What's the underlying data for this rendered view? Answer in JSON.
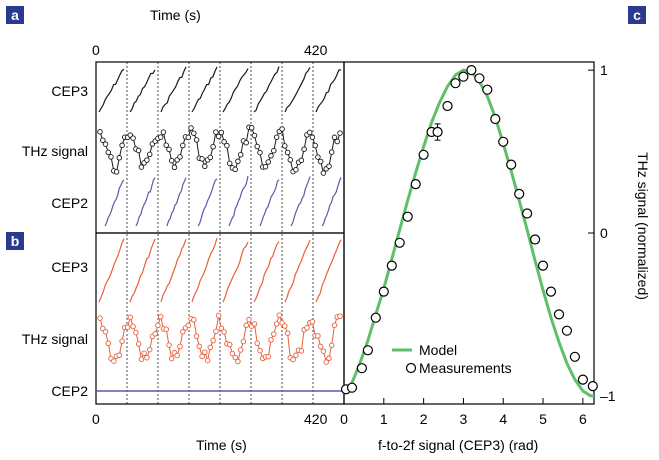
{
  "panels": {
    "a": "a",
    "b": "b",
    "c": "c"
  },
  "left": {
    "time_label_top": "Time (s)",
    "time_label_bottom": "Time (s)",
    "tick_start_top": "0",
    "tick_end_top": "420",
    "tick_start_bottom": "0",
    "tick_end_bottom": "420",
    "panel_a_labels": [
      "CEP3",
      "THz signal",
      "CEP2"
    ],
    "panel_b_labels": [
      "CEP3",
      "THz signal",
      "CEP2"
    ],
    "time_range": [
      0,
      420
    ],
    "colors": {
      "panel_a_cep3": "#1a1a1a",
      "panel_a_thz": "#1a1a1a",
      "panel_a_cep2": "#5a5aa8",
      "panel_b_cep3": "#e8603c",
      "panel_b_thz": "#e8603c",
      "panel_b_cep2": "#5a5aa8"
    }
  },
  "chart_data": {
    "type": "scatter",
    "xlabel": "f-to-2f signal (CEP3) (rad)",
    "ylabel": "THz signal (normalized)",
    "xlim": [
      0,
      6.28
    ],
    "ylim": [
      -1.05,
      1.05
    ],
    "x_ticks": [
      "0",
      "1",
      "2",
      "3",
      "4",
      "5",
      "6"
    ],
    "y_ticks": [
      "–1",
      "0",
      "1"
    ],
    "series": [
      {
        "name": "Model",
        "kind": "line",
        "color": "#5fbf6a",
        "x": [
          0.0,
          0.2,
          0.4,
          0.6,
          0.8,
          1.0,
          1.2,
          1.4,
          1.6,
          1.8,
          2.0,
          2.2,
          2.4,
          2.6,
          2.8,
          3.0,
          3.2,
          3.4,
          3.6,
          3.8,
          4.0,
          4.2,
          4.4,
          4.6,
          4.8,
          5.0,
          5.2,
          5.4,
          5.6,
          5.8,
          6.0,
          6.2,
          6.28
        ],
        "y": [
          -0.99,
          -0.92,
          -0.8,
          -0.66,
          -0.5,
          -0.34,
          -0.16,
          0.02,
          0.2,
          0.37,
          0.53,
          0.68,
          0.8,
          0.9,
          0.97,
          1.0,
          0.99,
          0.93,
          0.84,
          0.71,
          0.55,
          0.38,
          0.2,
          0.02,
          -0.17,
          -0.35,
          -0.52,
          -0.67,
          -0.8,
          -0.9,
          -0.97,
          -1.0,
          -1.0
        ]
      },
      {
        "name": "Measurements",
        "kind": "points",
        "color": "#000000",
        "x": [
          0.05,
          0.2,
          0.45,
          0.6,
          0.8,
          1.0,
          1.2,
          1.4,
          1.6,
          1.8,
          2.0,
          2.2,
          2.35,
          2.6,
          2.8,
          3.0,
          3.2,
          3.4,
          3.6,
          3.8,
          4.0,
          4.2,
          4.4,
          4.6,
          4.8,
          5.0,
          5.2,
          5.4,
          5.6,
          5.8,
          6.0,
          6.25
        ],
        "y": [
          -0.96,
          -0.95,
          -0.83,
          -0.72,
          -0.52,
          -0.36,
          -0.2,
          -0.06,
          0.1,
          0.3,
          0.48,
          0.62,
          0.62,
          0.78,
          0.92,
          0.96,
          1.0,
          0.95,
          0.88,
          0.7,
          0.56,
          0.42,
          0.24,
          0.12,
          -0.04,
          -0.2,
          -0.36,
          -0.5,
          -0.6,
          -0.76,
          -0.9,
          -0.94
        ]
      }
    ],
    "error_bar": {
      "x": 2.35,
      "y": 0.62,
      "err": 0.05
    },
    "legend": {
      "position": "bottom-right",
      "model_label": "Model",
      "measurements_label": "Measurements"
    }
  }
}
